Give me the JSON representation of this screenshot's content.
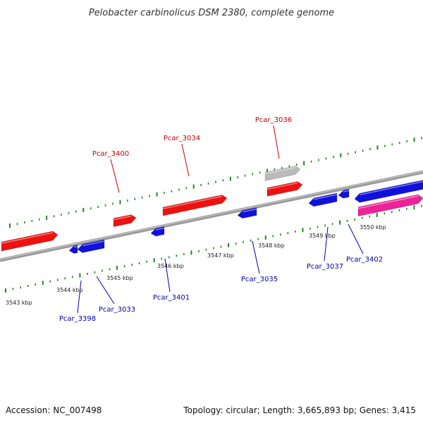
{
  "title": "Pelobacter carbinolicus DSM 2380, complete genome",
  "accession": "Accession: NC_007498",
  "summary": "Topology: circular; Length: 3,665,893 bp; Genes: 3,415",
  "colors": {
    "forward": "#ee1111",
    "reverse": "#1111dd",
    "other": "#bbbbbb",
    "pink": "#ee2299",
    "backbone": "#888888",
    "tick": "#228822",
    "label_forward": "#cc0000",
    "label_reverse": "#0000aa"
  },
  "ticks": [
    {
      "label": "3543 kbp"
    },
    {
      "label": "3544 kbp"
    },
    {
      "label": "3545 kbp"
    },
    {
      "label": "3546 kbp"
    },
    {
      "label": "3547 kbp"
    },
    {
      "label": "3548 kbp"
    },
    {
      "label": "3549 kbp"
    },
    {
      "label": "3550 kbp"
    }
  ],
  "genes": [
    {
      "name": "Pcar_3400",
      "strand": "forward"
    },
    {
      "name": "Pcar_3034",
      "strand": "forward"
    },
    {
      "name": "Pcar_3036",
      "strand": "forward"
    },
    {
      "name": "Pcar_3398",
      "strand": "reverse"
    },
    {
      "name": "Pcar_3033",
      "strand": "reverse"
    },
    {
      "name": "Pcar_3401",
      "strand": "reverse"
    },
    {
      "name": "Pcar_3035",
      "strand": "reverse"
    },
    {
      "name": "Pcar_3037",
      "strand": "reverse"
    },
    {
      "name": "Pcar_3402",
      "strand": "reverse"
    }
  ]
}
